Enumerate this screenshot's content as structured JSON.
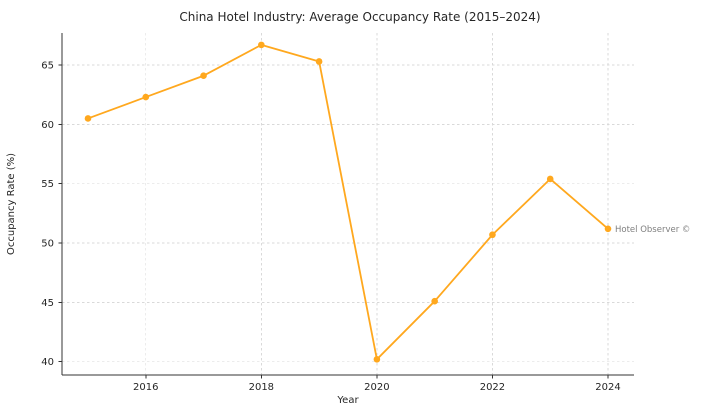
{
  "chart_data": {
    "type": "line",
    "title": "China Hotel Industry: Average Occupancy Rate (2015–2024)",
    "xlabel": "Year",
    "ylabel": "Occupancy Rate (%)",
    "x": [
      2015,
      2016,
      2017,
      2018,
      2019,
      2020,
      2021,
      2022,
      2023,
      2024
    ],
    "y": [
      60.5,
      62.3,
      64.1,
      66.7,
      65.3,
      40.2,
      45.1,
      50.7,
      55.4,
      51.2
    ],
    "xticks": [
      2016,
      2018,
      2020,
      2022,
      2024
    ],
    "yticks": [
      40,
      45,
      50,
      55,
      60,
      65
    ],
    "xlim": [
      2014.55,
      2024.45
    ],
    "ylim": [
      38.88,
      67.7
    ],
    "grid": true,
    "grid_style": "dashed",
    "legend_position": "none",
    "series": [
      {
        "name": "Average Occupancy Rate",
        "color": "#FFA81E",
        "marker": "circle"
      }
    ],
    "annotation": {
      "text": "Hotel Observer ©",
      "color": "#7f7f7f",
      "attached_to_x": 2024
    },
    "colors": {
      "grid": "#d9d9d9",
      "spine": "#333333",
      "text": "#262626",
      "background": "#ffffff"
    }
  }
}
